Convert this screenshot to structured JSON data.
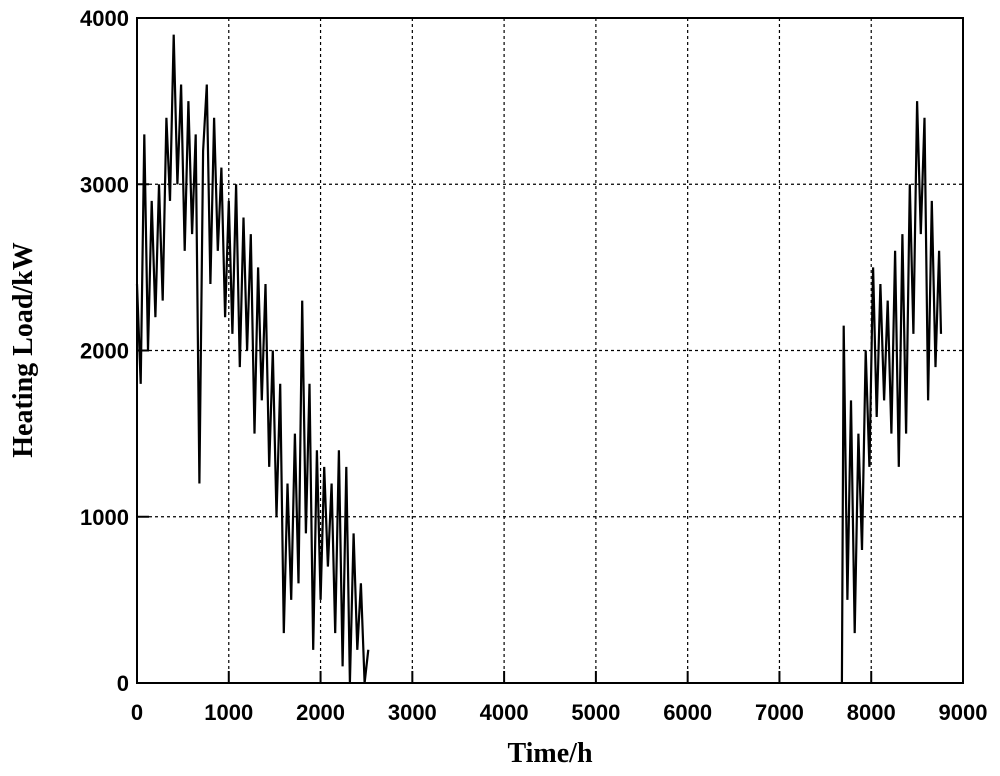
{
  "chart_data": {
    "type": "line",
    "x_label": "Time/h",
    "y_label": "Heating Load/kW",
    "x": [
      0,
      40,
      80,
      120,
      160,
      200,
      240,
      280,
      320,
      360,
      400,
      440,
      480,
      520,
      560,
      600,
      640,
      680,
      720,
      760,
      800,
      840,
      880,
      920,
      960,
      1000,
      1040,
      1080,
      1120,
      1160,
      1200,
      1240,
      1280,
      1320,
      1360,
      1400,
      1440,
      1480,
      1520,
      1560,
      1600,
      1640,
      1680,
      1720,
      1760,
      1800,
      1840,
      1880,
      1920,
      1960,
      2000,
      2040,
      2080,
      2120,
      2160,
      2200,
      2240,
      2280,
      2320,
      2360,
      2400,
      2440,
      2480,
      2520,
      5000,
      7680,
      7700,
      7740,
      7780,
      7820,
      7860,
      7900,
      7940,
      7980,
      8020,
      8060,
      8100,
      8140,
      8180,
      8220,
      8260,
      8300,
      8340,
      8380,
      8420,
      8460,
      8500,
      8540,
      8580,
      8620,
      8660,
      8700,
      8740,
      8760
    ],
    "series": [
      {
        "color": "#000000",
        "values": [
          2400,
          1800,
          3300,
          2000,
          2900,
          2200,
          3000,
          2300,
          3400,
          2900,
          3900,
          3000,
          3600,
          2600,
          3500,
          2700,
          3300,
          1200,
          3200,
          3600,
          2400,
          3400,
          2600,
          3100,
          2200,
          2900,
          2100,
          3000,
          1900,
          2800,
          2000,
          2700,
          1500,
          2500,
          1700,
          2400,
          1300,
          2000,
          1000,
          1800,
          300,
          1200,
          500,
          1500,
          600,
          2300,
          900,
          1800,
          200,
          1400,
          500,
          1300,
          700,
          1200,
          300,
          1400,
          100,
          1300,
          0,
          900,
          200,
          600,
          0,
          200,
          null,
          0,
          2150,
          500,
          1700,
          300,
          1500,
          800,
          2000,
          1300,
          2500,
          1600,
          2400,
          1700,
          2300,
          1500,
          2600,
          1300,
          2700,
          1500,
          3000,
          2100,
          3500,
          2700,
          3400,
          1700,
          2900,
          1900,
          2600,
          2100
        ]
      }
    ],
    "xlim": [
      0,
      9000
    ],
    "xticks": [
      0,
      1000,
      2000,
      3000,
      4000,
      5000,
      6000,
      7000,
      8000,
      9000
    ],
    "ylim": [
      0,
      4000
    ],
    "yticks": [
      0,
      1000,
      2000,
      3000,
      4000
    ],
    "grid": true
  }
}
